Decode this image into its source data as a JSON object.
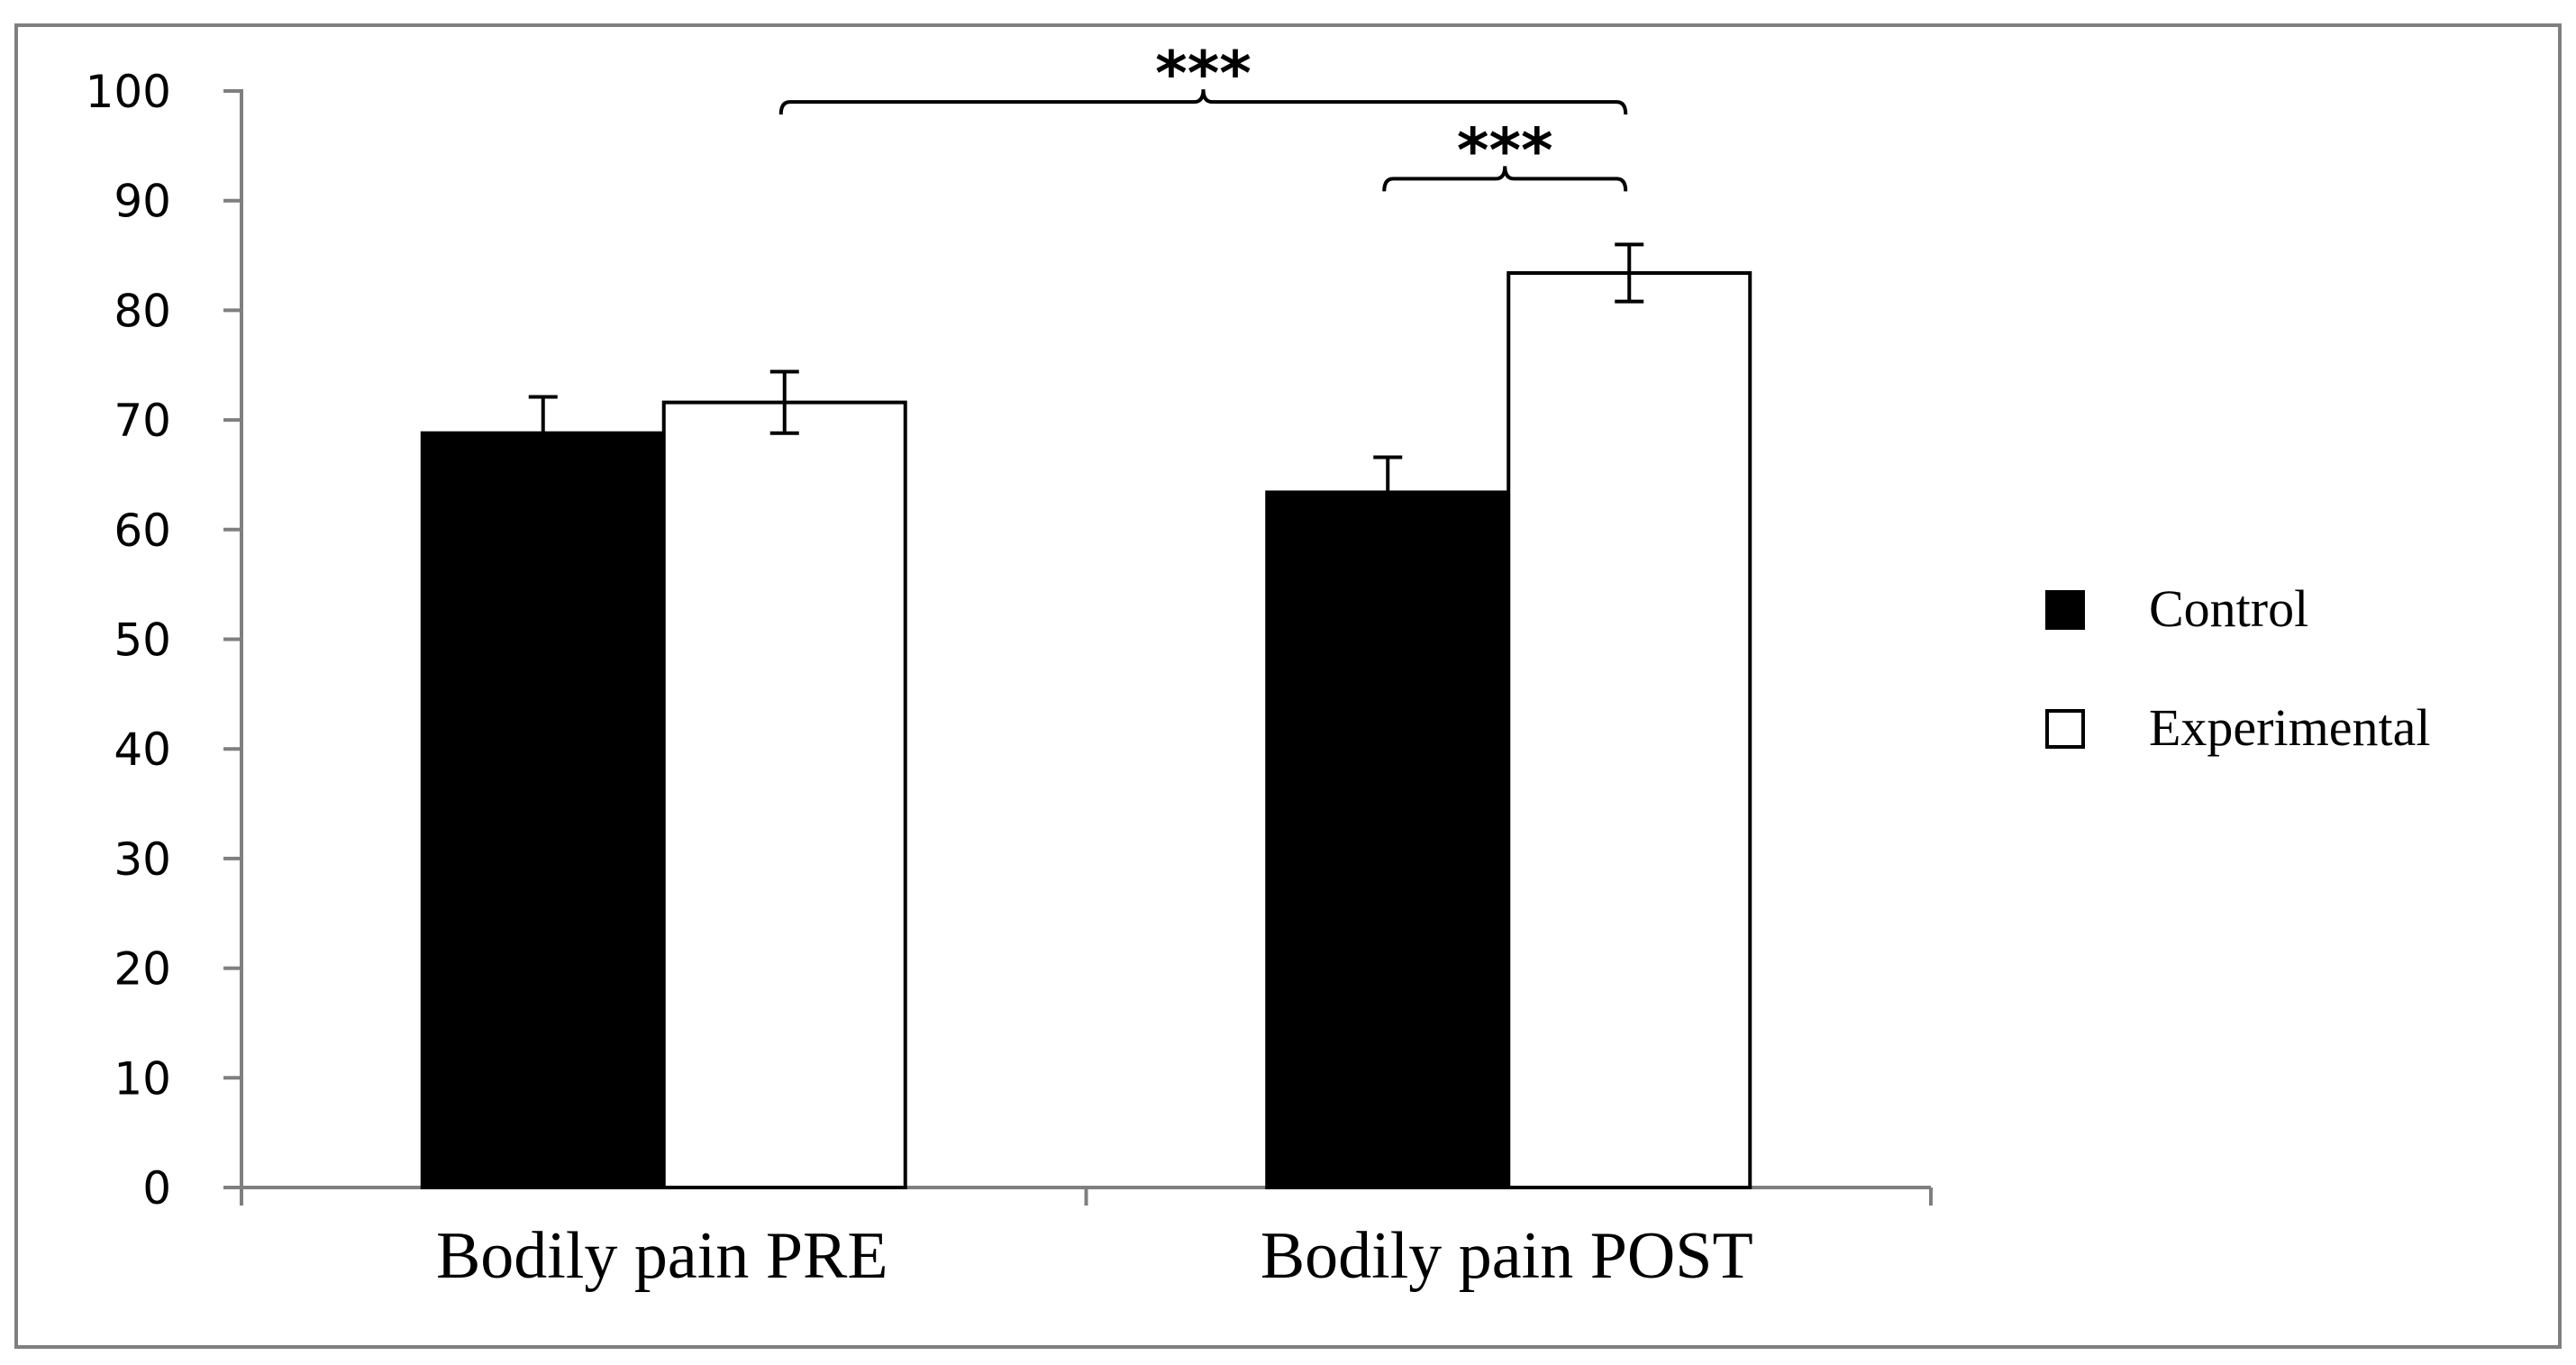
{
  "chart_data": {
    "type": "bar",
    "title": "",
    "xlabel": "",
    "ylabel": "",
    "ylim": [
      0,
      100
    ],
    "yticks": [
      0,
      10,
      20,
      30,
      40,
      50,
      60,
      70,
      80,
      90,
      100
    ],
    "categories": [
      "Bodily pain PRE",
      "Bodily pain POST"
    ],
    "series": [
      {
        "name": "Control",
        "values": [
          68.8,
          63.4
        ],
        "errors": [
          3.3,
          3.2
        ],
        "color": "#000000"
      },
      {
        "name": "Experimental",
        "values": [
          71.6,
          83.4
        ],
        "errors": [
          2.8,
          2.6
        ],
        "color": "#ffffff"
      }
    ],
    "legend_position": "right",
    "grid": false,
    "significance": [
      {
        "label": "***",
        "from_category": 0,
        "from_series": 1,
        "to_category": 1,
        "to_series": 1,
        "level": 99
      },
      {
        "label": "***",
        "from_category": 1,
        "from_series": 0,
        "to_category": 1,
        "to_series": 1,
        "level": 92
      }
    ],
    "colors": {
      "axis": "#7f7f7f",
      "frame": "#7f7f7f",
      "bar_stroke": "#000000"
    }
  }
}
